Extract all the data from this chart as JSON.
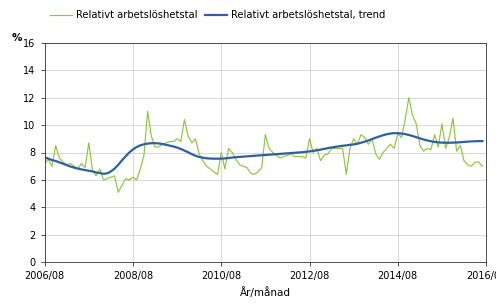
{
  "ylabel": "%",
  "xlabel": "År/månad",
  "ylim": [
    0,
    16
  ],
  "yticks": [
    0,
    2,
    4,
    6,
    8,
    10,
    12,
    14,
    16
  ],
  "xtick_labels": [
    "2006/08",
    "2008/08",
    "2010/08",
    "2012/08",
    "2014/08",
    "2016/08"
  ],
  "legend_label_green": "Relativt arbetslöshetstal",
  "legend_label_blue": "Relativt arbetslöshetstal, trend",
  "green_color": "#8dc63f",
  "blue_color": "#2E5FA3",
  "background_color": "#ffffff",
  "grid_color": "#c8c8c8",
  "raw_data": [
    7.2,
    7.5,
    7.0,
    8.5,
    7.6,
    7.3,
    7.1,
    7.2,
    7.0,
    6.8,
    7.2,
    6.9,
    8.7,
    6.7,
    6.3,
    6.8,
    6.0,
    6.1,
    6.2,
    6.3,
    5.1,
    5.6,
    6.1,
    6.0,
    6.2,
    6.0,
    6.8,
    7.8,
    11.0,
    9.2,
    8.4,
    8.4,
    8.6,
    8.7,
    8.8,
    8.8,
    9.0,
    8.8,
    10.4,
    9.2,
    8.7,
    9.0,
    7.9,
    7.4,
    7.0,
    6.8,
    6.6,
    6.4,
    8.0,
    6.8,
    8.3,
    8.0,
    7.5,
    7.1,
    7.0,
    6.9,
    6.5,
    6.4,
    6.6,
    6.9,
    9.3,
    8.3,
    8.0,
    7.8,
    7.6,
    7.7,
    7.8,
    7.9,
    7.7,
    7.7,
    7.7,
    7.6,
    9.0,
    8.0,
    8.3,
    7.4,
    7.8,
    7.9,
    8.3,
    8.3,
    8.3,
    8.3,
    6.4,
    8.3,
    9.0,
    8.6,
    9.3,
    9.1,
    8.6,
    9.0,
    7.9,
    7.5,
    8.0,
    8.3,
    8.6,
    8.3,
    9.4,
    9.1,
    10.4,
    12.0,
    10.7,
    10.1,
    8.5,
    8.1,
    8.3,
    8.2,
    9.3,
    8.4,
    10.1,
    8.3,
    9.1,
    10.5,
    8.1,
    8.5,
    7.4,
    7.1,
    7.0,
    7.3,
    7.3,
    7.0
  ],
  "trend_data": [
    7.65,
    7.55,
    7.45,
    7.38,
    7.28,
    7.18,
    7.08,
    6.98,
    6.9,
    6.83,
    6.77,
    6.72,
    6.67,
    6.62,
    6.55,
    6.5,
    6.45,
    6.48,
    6.62,
    6.82,
    7.1,
    7.42,
    7.72,
    8.0,
    8.22,
    8.4,
    8.52,
    8.6,
    8.65,
    8.68,
    8.68,
    8.66,
    8.62,
    8.56,
    8.5,
    8.44,
    8.36,
    8.26,
    8.14,
    8.02,
    7.88,
    7.76,
    7.68,
    7.62,
    7.58,
    7.56,
    7.55,
    7.55,
    7.55,
    7.57,
    7.6,
    7.63,
    7.66,
    7.68,
    7.7,
    7.72,
    7.74,
    7.76,
    7.78,
    7.8,
    7.82,
    7.84,
    7.86,
    7.88,
    7.9,
    7.92,
    7.94,
    7.96,
    7.98,
    8.0,
    8.02,
    8.05,
    8.08,
    8.12,
    8.16,
    8.21,
    8.26,
    8.32,
    8.37,
    8.41,
    8.45,
    8.49,
    8.52,
    8.56,
    8.59,
    8.64,
    8.71,
    8.79,
    8.88,
    8.98,
    9.08,
    9.17,
    9.26,
    9.33,
    9.38,
    9.41,
    9.41,
    9.38,
    9.34,
    9.28,
    9.2,
    9.12,
    9.03,
    8.95,
    8.88,
    8.82,
    8.77,
    8.74,
    8.72,
    8.71,
    8.71,
    8.72,
    8.73,
    8.75,
    8.77,
    8.79,
    8.81,
    8.82,
    8.83,
    8.83
  ]
}
